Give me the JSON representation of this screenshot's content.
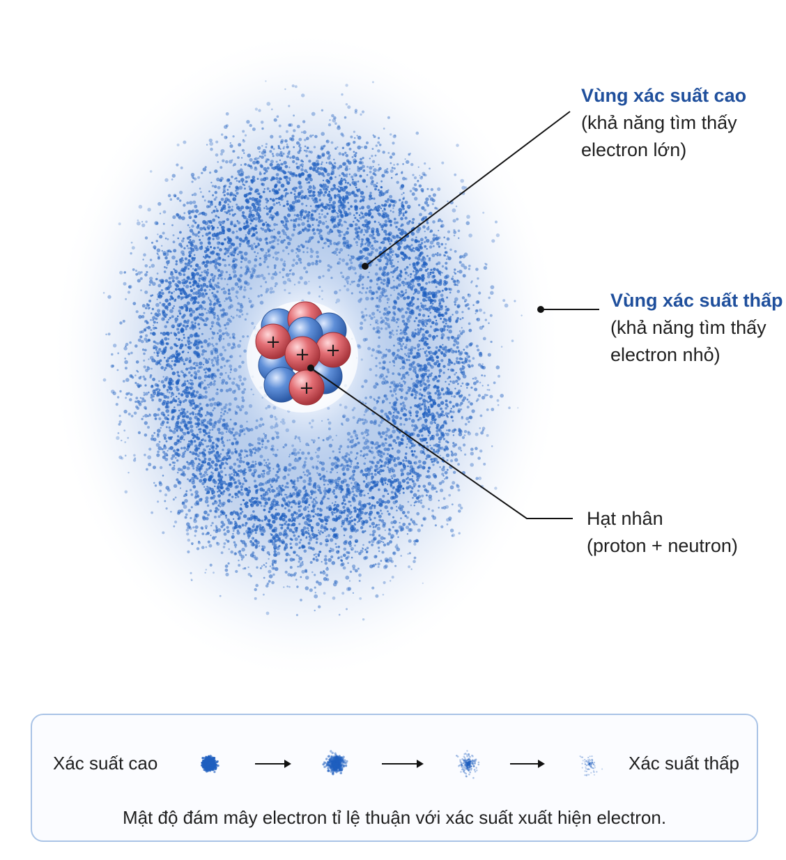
{
  "labels": {
    "high": {
      "title": "Vùng xác suất cao",
      "line1": "(khả năng tìm thấy",
      "line2": "electron lớn)"
    },
    "low": {
      "title": "Vùng xác suất thấp",
      "line1": "(khả năng tìm thấy",
      "line2": "electron nhỏ)"
    },
    "nucleus": {
      "title": "Hạt nhân",
      "line1": "(proton + neutron)"
    }
  },
  "nucleus_symbol": "+",
  "legend": {
    "high_label": "Xác suất cao",
    "low_label": "Xác suất thấp",
    "caption": "Mật độ đám mây electron tỉ lệ thuận với xác suất xuất hiện electron."
  },
  "colors": {
    "cloud": "#1f5fbf",
    "proton": "#d9545c",
    "neutron": "#4a7fd0",
    "label_accent": "#1f4f9c",
    "legend_border": "#a9c3e6"
  }
}
